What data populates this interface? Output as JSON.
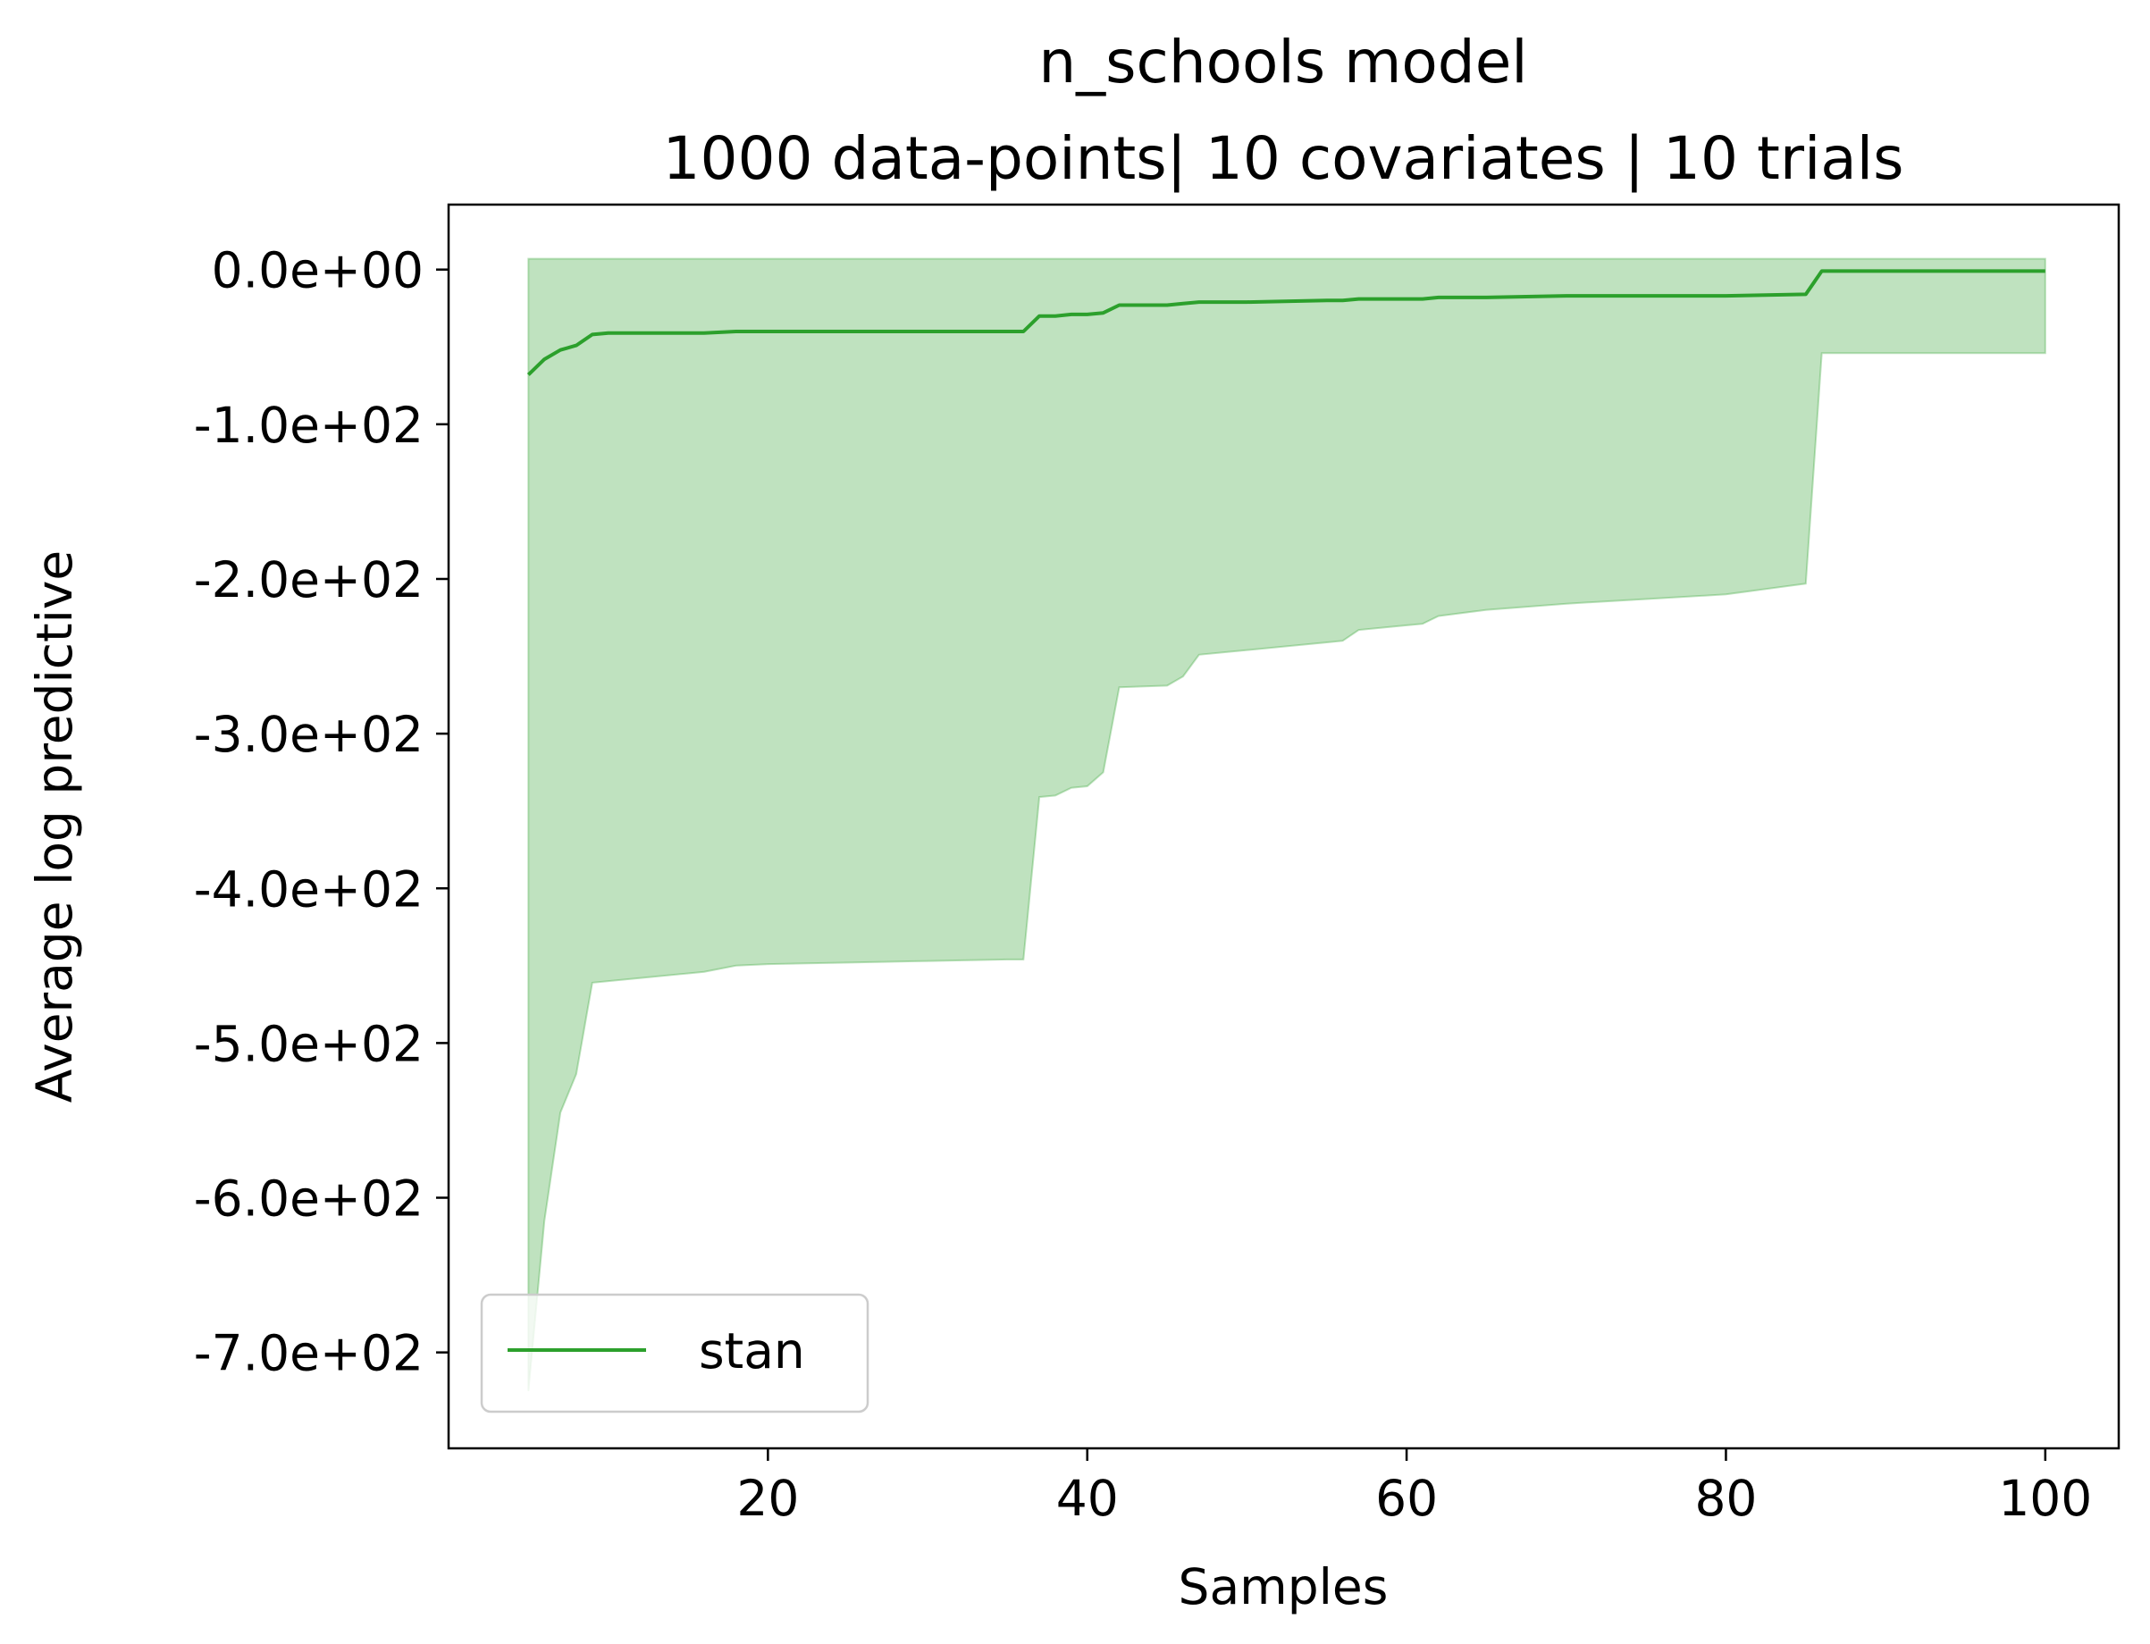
{
  "chart_data": {
    "type": "area",
    "title": "n_schools model",
    "subtitle": "1000 data-points| 10 covariates | 10 trials",
    "xlabel": "Samples",
    "ylabel": "Average log predictive",
    "xlim": [
      0.0,
      104.6
    ],
    "ylim": [
      -762,
      42
    ],
    "x_ticks": [
      20,
      40,
      60,
      80,
      100
    ],
    "x_tick_labels": [
      "20",
      "40",
      "60",
      "80",
      "100"
    ],
    "y_ticks": [
      0,
      -100,
      -200,
      -300,
      -400,
      -500,
      -600,
      -700
    ],
    "y_tick_labels": [
      "0.0e+00",
      "-1.0e+02",
      "-2.0e+02",
      "-3.0e+02",
      "-4.0e+02",
      "-5.0e+02",
      "-6.0e+02",
      "-7.0e+02"
    ],
    "grid": false,
    "legend_position": "lower-left",
    "colors": {
      "line": "#2ca02c",
      "band_fill": "#2ca02c",
      "band_opacity": 0.3
    },
    "series": [
      {
        "name": "stan",
        "x": [
          5,
          6,
          7,
          8,
          9,
          10,
          15,
          16,
          18,
          20,
          25,
          30,
          35,
          36,
          37,
          38,
          39,
          40,
          41,
          42,
          45,
          46,
          47,
          50,
          55,
          56,
          57,
          60,
          61,
          62,
          65,
          70,
          75,
          80,
          85,
          86,
          90,
          95,
          100
        ],
        "y": [
          -68,
          -58,
          -52,
          -49,
          -42,
          -41,
          -41,
          -41,
          -40,
          -40,
          -40,
          -40,
          -40,
          -40,
          -30,
          -30,
          -29,
          -29,
          -28,
          -23,
          -23,
          -22,
          -21,
          -21,
          -20,
          -20,
          -19,
          -19,
          -19,
          -18,
          -18,
          -17,
          -17,
          -17,
          -16,
          -1,
          -1,
          -1,
          -1
        ],
        "lower": [
          -725,
          -615,
          -545,
          -520,
          -461,
          -460,
          -455,
          -454,
          -450,
          -449,
          -448,
          -447,
          -446,
          -446,
          -341,
          -340,
          -335,
          -334,
          -325,
          -270,
          -269,
          -263,
          -249,
          -246,
          -241,
          -240,
          -233,
          -230,
          -229,
          -224,
          -220,
          -216,
          -213,
          -210,
          -203,
          -54,
          -54,
          -54,
          -54
        ],
        "upper": [
          7,
          7,
          7,
          7,
          7,
          7,
          7,
          7,
          7,
          7,
          7,
          7,
          7,
          7,
          7,
          7,
          7,
          7,
          7,
          7,
          7,
          7,
          7,
          7,
          7,
          7,
          7,
          7,
          7,
          7,
          7,
          7,
          7,
          7,
          7,
          7,
          7,
          7,
          7
        ]
      }
    ]
  }
}
